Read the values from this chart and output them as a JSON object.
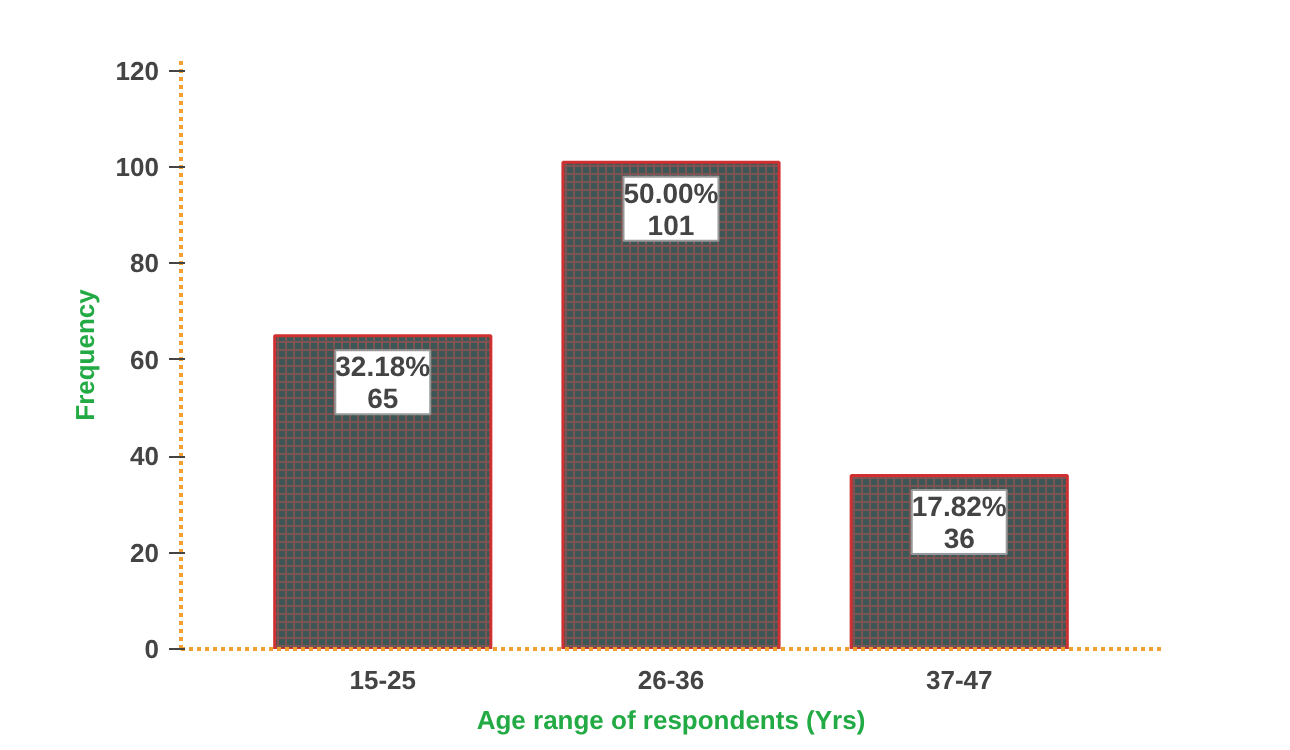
{
  "chart_data": {
    "type": "bar",
    "xlabel": "Age range of respondents (Yrs)",
    "ylabel": "Frequency",
    "categories": [
      "15-25",
      "26-36",
      "37-47"
    ],
    "values": [
      65,
      101,
      36
    ],
    "value_labels": [
      "32.18%\n65",
      "50.00%\n101",
      "17.82%\n36"
    ],
    "color": "#3b5856",
    "ylim": [
      0,
      122
    ],
    "yticks": [
      0,
      20,
      40,
      60,
      80,
      100,
      120
    ],
    "grid": false
  }
}
